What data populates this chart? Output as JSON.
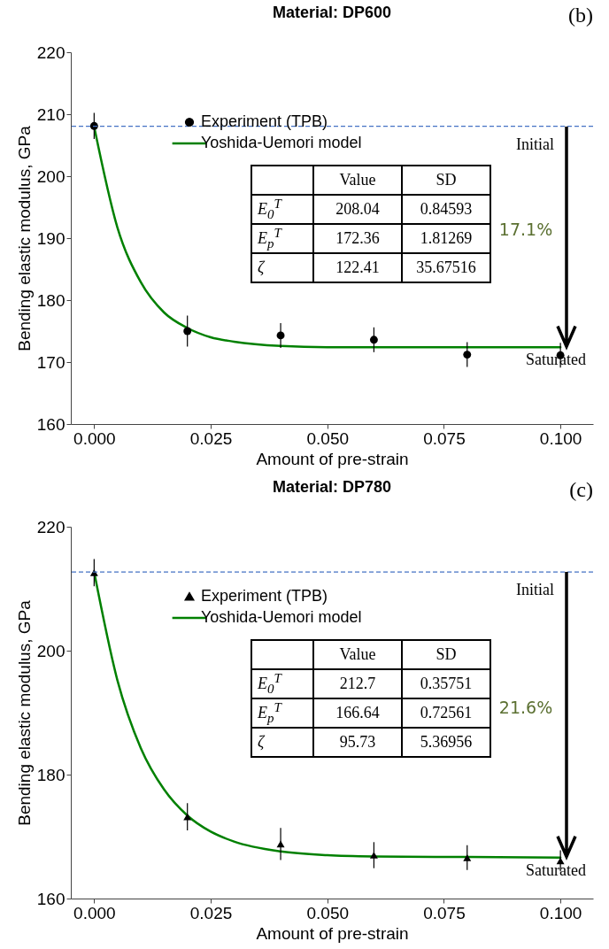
{
  "chart_data": [
    {
      "type": "scatter",
      "title": "Material: DP600",
      "xlabel": "Amount of pre-strain",
      "ylabel": "Bending elastic modulus, GPa",
      "xlim": [
        -0.005,
        0.107
      ],
      "ylim": [
        160,
        220
      ],
      "xticks": [
        {
          "value": 0,
          "label": "0.000"
        },
        {
          "value": 0.025,
          "label": "0.025"
        },
        {
          "value": 0.05,
          "label": "0.050"
        },
        {
          "value": 0.075,
          "label": "0.075"
        },
        {
          "value": 0.1,
          "label": "0.100"
        }
      ],
      "yticks": [
        160,
        170,
        180,
        190,
        200,
        210,
        220
      ],
      "grid": false,
      "legend": "top",
      "x": [
        0,
        0.02,
        0.04,
        0.06,
        0.08,
        0.1
      ],
      "series": [
        {
          "name": "Experiment (TPB)",
          "color": "#000000",
          "marker": "circle",
          "values": [
            208.1,
            175,
            174.3,
            173.6,
            171.2,
            171.1
          ],
          "errors": [
            2.1,
            2.5,
            2,
            2,
            2,
            2
          ]
        },
        {
          "name": "Yoshida-Uemori model",
          "type": "line",
          "color": "#008000",
          "x": [
            0,
            0.005,
            0.01,
            0.015,
            0.02,
            0.025,
            0.03,
            0.04,
            0.05,
            0.06,
            0.08,
            0.1
          ],
          "values": [
            208.0,
            191.7,
            182.9,
            178.0,
            175.5,
            174.0,
            173.3,
            172.6,
            172.4,
            172.4,
            172.4,
            172.4
          ]
        }
      ],
      "ref_lines": [
        {
          "axis": "y",
          "value": 208.04,
          "label": "Initial",
          "color": "#4472c4",
          "line_style": "dashed"
        }
      ],
      "annotations": [
        "(b)",
        "17.1%",
        "Saturated"
      ]
    },
    {
      "type": "other",
      "categories": [
        "Value",
        "SD"
      ],
      "y_categories": [
        "E$_{0}$$^{T}$",
        "E$_{p}$$^{T}$",
        "ζ"
      ],
      "cell_labels": [
        [
          "208.04",
          "0.84593"
        ],
        [
          "172.36",
          "1.81269"
        ],
        [
          "122.41",
          "35.67516"
        ]
      ]
    },
    {
      "type": "scatter",
      "title": "Material: DP780",
      "xlabel": "Amount of pre-strain",
      "ylabel": "Bending elastic modulus, GPa",
      "xlim": [
        -0.005,
        0.107
      ],
      "ylim": [
        160,
        220
      ],
      "xticks": [
        {
          "value": 0,
          "label": "0.000"
        },
        {
          "value": 0.025,
          "label": "0.025"
        },
        {
          "value": 0.05,
          "label": "0.050"
        },
        {
          "value": 0.075,
          "label": "0.075"
        },
        {
          "value": 0.1,
          "label": "0.100"
        }
      ],
      "yticks": [
        160,
        180,
        200,
        220
      ],
      "grid": false,
      "legend": "top",
      "x": [
        0,
        0.02,
        0.04,
        0.06,
        0.08,
        0.1
      ],
      "series": [
        {
          "name": "Experiment (TPB)",
          "color": "#000000",
          "marker": "triangle",
          "values": [
            212.6,
            173.2,
            168.8,
            167,
            166.6,
            166.1
          ],
          "errors": [
            2.2,
            2.2,
            2.6,
            2.1,
            2,
            1.7
          ]
        },
        {
          "name": "Yoshida-Uemori model",
          "type": "line",
          "color": "#008000",
          "x": [
            0,
            0.005,
            0.01,
            0.015,
            0.02,
            0.025,
            0.03,
            0.04,
            0.05,
            0.06,
            0.08,
            0.1
          ],
          "values": [
            212.7,
            195.2,
            184.3,
            177.6,
            173.4,
            170.8,
            169.2,
            167.6,
            167.0,
            166.8,
            166.7,
            166.6
          ]
        }
      ],
      "ref_lines": [
        {
          "axis": "y",
          "value": 212.7,
          "label": "Initial",
          "color": "#4472c4",
          "line_style": "dashed"
        }
      ],
      "annotations": [
        "(c)",
        "21.6%",
        "Saturated"
      ]
    },
    {
      "type": "other",
      "categories": [
        "Value",
        "SD"
      ],
      "y_categories": [
        "E$_{0}$$^{T}$",
        "E$_{p}$$^{T}$",
        "ζ"
      ],
      "cell_labels": [
        [
          "212.7",
          "0.35751"
        ],
        [
          "166.64",
          "0.72561"
        ],
        [
          "95.73",
          "5.36956"
        ]
      ]
    }
  ]
}
